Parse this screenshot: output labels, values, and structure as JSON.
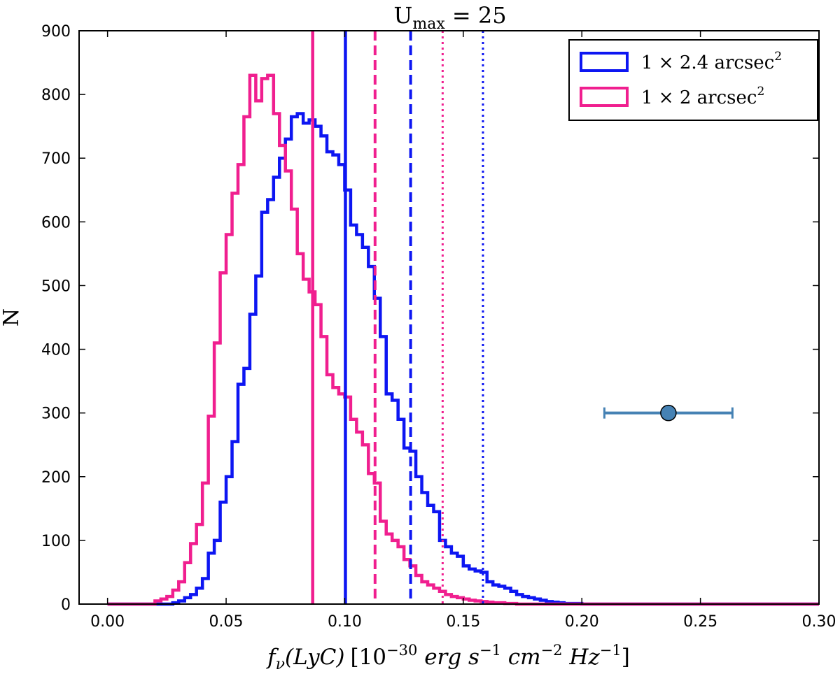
{
  "chart_data": {
    "type": "histogram",
    "title_main": "U",
    "title_sub": "max",
    "title_rest": " = 25",
    "xlabel_fn": "f",
    "xlabel_nu": "ν",
    "xlabel_paren": "(LyC)",
    "xlabel_units_open": "[10",
    "xlabel_units_exp": "−30",
    "xlabel_units_rest": " erg s",
    "xlabel_units_e1": "−1",
    "xlabel_units_cm": " cm",
    "xlabel_units_e2": "−2",
    "xlabel_units_hz": " Hz",
    "xlabel_units_e3": "−1",
    "xlabel_units_close": "]",
    "ylabel": "N",
    "xlim": [
      -0.012,
      0.3
    ],
    "ylim": [
      0,
      900
    ],
    "xticks": [
      0.0,
      0.05,
      0.1,
      0.15,
      0.2,
      0.25,
      0.3
    ],
    "xtick_labels": [
      "0.00",
      "0.05",
      "0.10",
      "0.15",
      "0.20",
      "0.25",
      "0.30"
    ],
    "yticks": [
      0,
      100,
      200,
      300,
      400,
      500,
      600,
      700,
      800,
      900
    ],
    "ytick_labels": [
      "0",
      "100",
      "200",
      "300",
      "400",
      "500",
      "600",
      "700",
      "800",
      "900"
    ],
    "legend_position": "upper-right",
    "series": [
      {
        "name": "blue",
        "legend": {
          "main": "1 × 2.4 arcsec",
          "exp": "2"
        },
        "color": "#0d16f2",
        "bin_edges": [
          0.0,
          0.01,
          0.02,
          0.025,
          0.0275,
          0.03,
          0.0325,
          0.035,
          0.0375,
          0.04,
          0.0425,
          0.045,
          0.0475,
          0.05,
          0.0525,
          0.055,
          0.0575,
          0.06,
          0.0625,
          0.065,
          0.0675,
          0.07,
          0.0725,
          0.075,
          0.0775,
          0.08,
          0.0825,
          0.085,
          0.0875,
          0.09,
          0.0925,
          0.095,
          0.0975,
          0.1,
          0.1025,
          0.105,
          0.1075,
          0.11,
          0.1125,
          0.115,
          0.1175,
          0.12,
          0.1225,
          0.125,
          0.1275,
          0.13,
          0.1325,
          0.135,
          0.1375,
          0.14,
          0.1425,
          0.145,
          0.1475,
          0.15,
          0.1525,
          0.155,
          0.1575,
          0.16,
          0.1625,
          0.165,
          0.1675,
          0.17,
          0.1725,
          0.175,
          0.1775,
          0.18,
          0.1825,
          0.185,
          0.1875,
          0.19,
          0.1925,
          0.2,
          0.21,
          0.3
        ],
        "counts": [
          0,
          0,
          0,
          0,
          2,
          5,
          10,
          15,
          25,
          40,
          80,
          100,
          160,
          200,
          255,
          345,
          370,
          455,
          515,
          615,
          635,
          670,
          700,
          730,
          765,
          770,
          755,
          760,
          750,
          735,
          710,
          705,
          690,
          650,
          595,
          580,
          560,
          530,
          480,
          420,
          330,
          320,
          290,
          245,
          240,
          200,
          175,
          155,
          145,
          100,
          90,
          80,
          75,
          60,
          55,
          52,
          50,
          35,
          30,
          28,
          25,
          20,
          15,
          12,
          10,
          8,
          6,
          4,
          3,
          2,
          1,
          0,
          0
        ],
        "median": 0.1003,
        "dashed": 0.1278,
        "dotted": 0.1583
      },
      {
        "name": "pink",
        "legend": {
          "main": "1 × 2 arcsec",
          "exp": "2"
        },
        "color": "#f01f8f",
        "bin_edges": [
          0.0,
          0.01,
          0.02,
          0.0225,
          0.025,
          0.0275,
          0.03,
          0.0325,
          0.035,
          0.0375,
          0.04,
          0.0425,
          0.045,
          0.0475,
          0.05,
          0.0525,
          0.055,
          0.0575,
          0.06,
          0.0625,
          0.065,
          0.0675,
          0.07,
          0.0725,
          0.075,
          0.0775,
          0.08,
          0.0825,
          0.085,
          0.0875,
          0.09,
          0.0925,
          0.095,
          0.0975,
          0.1,
          0.1025,
          0.105,
          0.1075,
          0.11,
          0.1125,
          0.115,
          0.1175,
          0.12,
          0.1225,
          0.125,
          0.1275,
          0.13,
          0.1325,
          0.135,
          0.1375,
          0.14,
          0.1425,
          0.145,
          0.1475,
          0.15,
          0.1525,
          0.155,
          0.1575,
          0.16,
          0.1625,
          0.165,
          0.1675,
          0.17,
          0.1725,
          0.175,
          0.1775,
          0.18,
          0.1825,
          0.185,
          0.1875,
          0.19,
          0.195,
          0.3
        ],
        "counts": [
          0,
          0,
          5,
          8,
          12,
          22,
          35,
          65,
          95,
          125,
          190,
          295,
          410,
          520,
          580,
          645,
          690,
          765,
          830,
          790,
          825,
          830,
          770,
          720,
          680,
          620,
          550,
          510,
          490,
          470,
          420,
          360,
          340,
          330,
          325,
          290,
          270,
          250,
          205,
          190,
          130,
          110,
          100,
          90,
          70,
          60,
          45,
          35,
          30,
          25,
          20,
          15,
          12,
          10,
          8,
          6,
          5,
          4,
          3,
          2,
          2,
          1,
          1,
          0,
          0,
          0,
          0,
          0,
          0,
          0,
          0,
          0
        ],
        "median": 0.0865,
        "dashed": 0.1128,
        "dotted": 0.1413
      }
    ],
    "errorbar_point": {
      "x": 0.2365,
      "y": 300,
      "xerr_low": 0.2095,
      "xerr_high": 0.2635,
      "color": "#4682b4"
    }
  }
}
